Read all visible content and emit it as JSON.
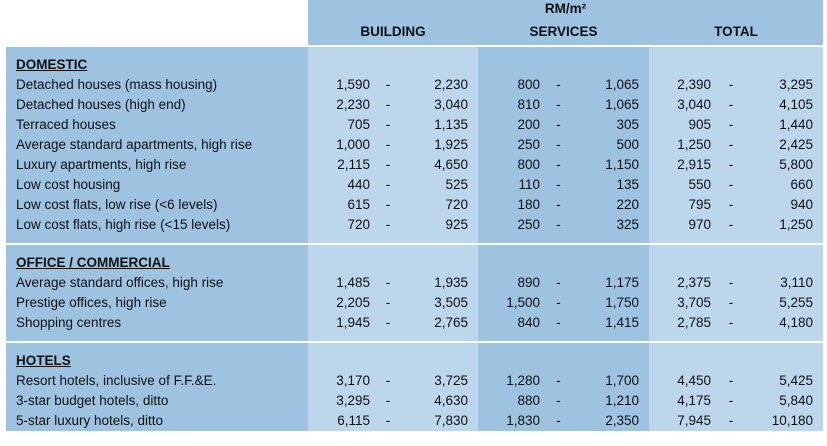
{
  "header": {
    "unit": "RM/m²",
    "columns": [
      "BUILDING",
      "SERVICES",
      "TOTAL"
    ]
  },
  "dash": "-",
  "sections": [
    {
      "title": "DOMESTIC",
      "rows": [
        {
          "label": "Detached houses (mass housing)",
          "b": [
            "1,590",
            "2,230"
          ],
          "s": [
            "800",
            "1,065"
          ],
          "t": [
            "2,390",
            "3,295"
          ]
        },
        {
          "label": "Detached houses (high end)",
          "b": [
            "2,230",
            "3,040"
          ],
          "s": [
            "810",
            "1,065"
          ],
          "t": [
            "3,040",
            "4,105"
          ]
        },
        {
          "label": "Terraced houses",
          "b": [
            "705",
            "1,135"
          ],
          "s": [
            "200",
            "305"
          ],
          "t": [
            "905",
            "1,440"
          ]
        },
        {
          "label": "Average standard apartments, high rise",
          "b": [
            "1,000",
            "1,925"
          ],
          "s": [
            "250",
            "500"
          ],
          "t": [
            "1,250",
            "2,425"
          ]
        },
        {
          "label": "Luxury apartments, high rise",
          "b": [
            "2,115",
            "4,650"
          ],
          "s": [
            "800",
            "1,150"
          ],
          "t": [
            "2,915",
            "5,800"
          ]
        },
        {
          "label": "Low cost housing",
          "b": [
            "440",
            "525"
          ],
          "s": [
            "110",
            "135"
          ],
          "t": [
            "550",
            "660"
          ]
        },
        {
          "label": "Low cost flats, low rise (<6 levels)",
          "b": [
            "615",
            "720"
          ],
          "s": [
            "180",
            "220"
          ],
          "t": [
            "795",
            "940"
          ]
        },
        {
          "label": "Low cost flats, high rise (<15 levels)",
          "b": [
            "720",
            "925"
          ],
          "s": [
            "250",
            "325"
          ],
          "t": [
            "970",
            "1,250"
          ]
        }
      ]
    },
    {
      "title": "OFFICE / COMMERCIAL",
      "rows": [
        {
          "label": "Average standard offices, high rise",
          "b": [
            "1,485",
            "1,935"
          ],
          "s": [
            "890",
            "1,175"
          ],
          "t": [
            "2,375",
            "3,110"
          ]
        },
        {
          "label": "Prestige offices, high rise",
          "b": [
            "2,205",
            "3,505"
          ],
          "s": [
            "1,500",
            "1,750"
          ],
          "t": [
            "3,705",
            "5,255"
          ]
        },
        {
          "label": "Shopping centres",
          "b": [
            "1,945",
            "2,765"
          ],
          "s": [
            "840",
            "1,415"
          ],
          "t": [
            "2,785",
            "4,180"
          ]
        }
      ]
    },
    {
      "title": "HOTELS",
      "rows": [
        {
          "label": "Resort hotels, inclusive of F.F.&E.",
          "b": [
            "3,170",
            "3,725"
          ],
          "s": [
            "1,280",
            "1,700"
          ],
          "t": [
            "4,450",
            "5,425"
          ]
        },
        {
          "label": "3-star budget hotels, ditto",
          "b": [
            "3,295",
            "4,630"
          ],
          "s": [
            "880",
            "1,210"
          ],
          "t": [
            "4,175",
            "5,840"
          ]
        },
        {
          "label": "5-star luxury hotels, ditto",
          "b": [
            "6,115",
            "7,830"
          ],
          "s": [
            "1,830",
            "2,350"
          ],
          "t": [
            "7,945",
            "10,180"
          ]
        }
      ]
    }
  ]
}
